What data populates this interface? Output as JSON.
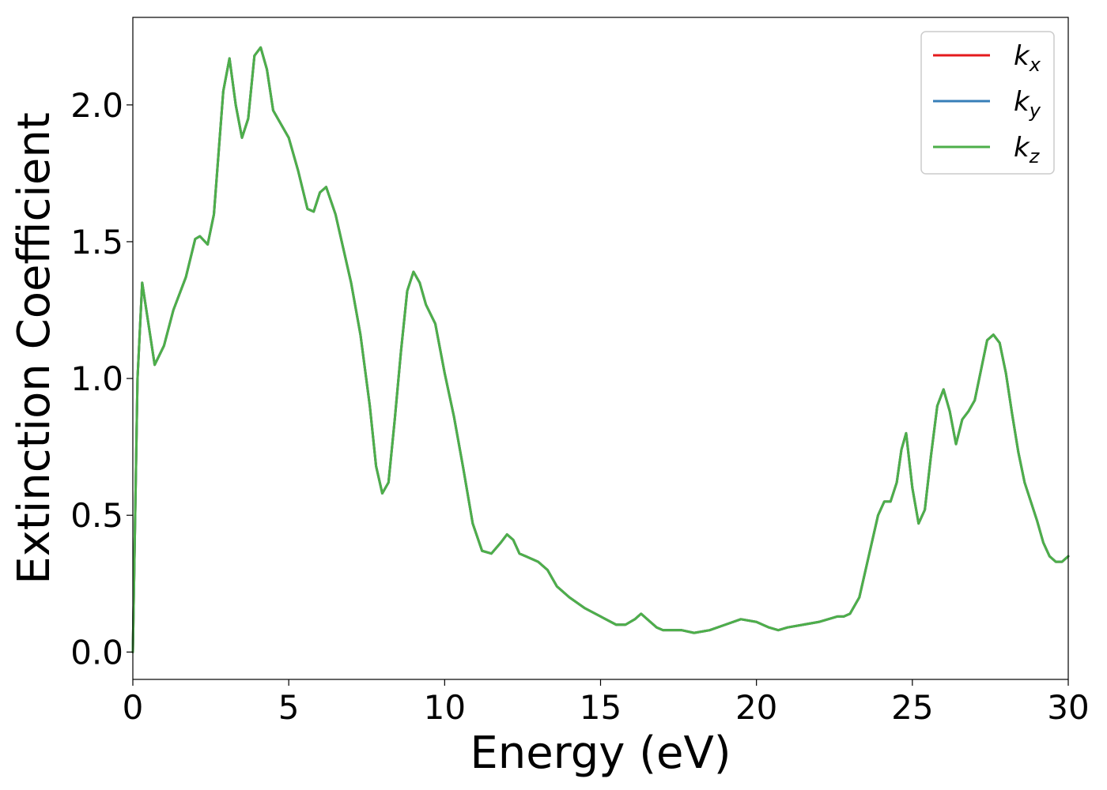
{
  "chart_data": {
    "type": "line",
    "title": "",
    "xlabel": "Energy (eV)",
    "ylabel": "Extinction Coefficient",
    "xlim": [
      0,
      30
    ],
    "ylim": [
      -0.1,
      2.32
    ],
    "xticks": [
      0,
      5,
      10,
      15,
      20,
      25,
      30
    ],
    "xtick_labels": [
      "0",
      "5",
      "10",
      "15",
      "20",
      "25",
      "30"
    ],
    "yticks": [
      0.0,
      0.5,
      1.0,
      1.5,
      2.0
    ],
    "ytick_labels": [
      "0.0",
      "0.5",
      "1.0",
      "1.5",
      "2.0"
    ],
    "grid": false,
    "legend_position": "top-right",
    "x": [
      0.0,
      0.15,
      0.3,
      0.5,
      0.7,
      1.0,
      1.3,
      1.7,
      2.0,
      2.15,
      2.4,
      2.6,
      2.9,
      3.1,
      3.3,
      3.5,
      3.7,
      3.9,
      4.1,
      4.3,
      4.5,
      4.7,
      5.0,
      5.3,
      5.6,
      5.8,
      6.0,
      6.2,
      6.5,
      6.8,
      7.0,
      7.3,
      7.6,
      7.8,
      8.0,
      8.2,
      8.4,
      8.6,
      8.8,
      9.0,
      9.2,
      9.4,
      9.7,
      10.0,
      10.3,
      10.6,
      10.9,
      11.2,
      11.5,
      11.8,
      12.0,
      12.2,
      12.4,
      12.6,
      12.8,
      13.0,
      13.3,
      13.6,
      14.0,
      14.5,
      15.0,
      15.5,
      15.8,
      16.1,
      16.3,
      16.5,
      16.8,
      17.0,
      17.3,
      17.6,
      18.0,
      18.5,
      19.0,
      19.5,
      20.0,
      20.4,
      20.7,
      21.0,
      21.5,
      22.0,
      22.3,
      22.6,
      22.8,
      23.0,
      23.3,
      23.6,
      23.9,
      24.1,
      24.3,
      24.5,
      24.65,
      24.8,
      25.0,
      25.2,
      25.4,
      25.6,
      25.8,
      26.0,
      26.2,
      26.4,
      26.6,
      26.8,
      27.0,
      27.2,
      27.4,
      27.6,
      27.8,
      28.0,
      28.2,
      28.4,
      28.6,
      28.8,
      29.0,
      29.2,
      29.4,
      29.6,
      29.8,
      30.0
    ],
    "series": [
      {
        "name": "k_x",
        "color": "#e41a1c",
        "values": [
          0.0,
          1.0,
          1.35,
          1.2,
          1.05,
          1.12,
          1.25,
          1.37,
          1.51,
          1.52,
          1.49,
          1.6,
          2.05,
          2.17,
          2.0,
          1.88,
          1.95,
          2.18,
          2.21,
          2.13,
          1.98,
          1.94,
          1.88,
          1.76,
          1.62,
          1.61,
          1.68,
          1.7,
          1.6,
          1.45,
          1.35,
          1.16,
          0.9,
          0.68,
          0.58,
          0.62,
          0.85,
          1.1,
          1.32,
          1.39,
          1.35,
          1.27,
          1.2,
          1.02,
          0.86,
          0.67,
          0.47,
          0.37,
          0.36,
          0.4,
          0.43,
          0.41,
          0.36,
          0.35,
          0.34,
          0.33,
          0.3,
          0.24,
          0.2,
          0.16,
          0.13,
          0.1,
          0.1,
          0.12,
          0.14,
          0.12,
          0.09,
          0.08,
          0.08,
          0.08,
          0.07,
          0.08,
          0.1,
          0.12,
          0.11,
          0.09,
          0.08,
          0.09,
          0.1,
          0.11,
          0.12,
          0.13,
          0.13,
          0.14,
          0.2,
          0.35,
          0.5,
          0.55,
          0.55,
          0.62,
          0.74,
          0.8,
          0.6,
          0.47,
          0.52,
          0.72,
          0.9,
          0.96,
          0.88,
          0.76,
          0.85,
          0.88,
          0.92,
          1.03,
          1.14,
          1.16,
          1.13,
          1.02,
          0.87,
          0.73,
          0.62,
          0.55,
          0.48,
          0.4,
          0.35,
          0.33,
          0.33,
          0.35
        ]
      },
      {
        "name": "k_y",
        "color": "#377eb8",
        "values": [
          0.0,
          1.0,
          1.35,
          1.2,
          1.05,
          1.12,
          1.25,
          1.37,
          1.51,
          1.52,
          1.49,
          1.6,
          2.05,
          2.17,
          2.0,
          1.88,
          1.95,
          2.18,
          2.21,
          2.13,
          1.98,
          1.94,
          1.88,
          1.76,
          1.62,
          1.61,
          1.68,
          1.7,
          1.6,
          1.45,
          1.35,
          1.16,
          0.9,
          0.68,
          0.58,
          0.62,
          0.85,
          1.1,
          1.32,
          1.39,
          1.35,
          1.27,
          1.2,
          1.02,
          0.86,
          0.67,
          0.47,
          0.37,
          0.36,
          0.4,
          0.43,
          0.41,
          0.36,
          0.35,
          0.34,
          0.33,
          0.3,
          0.24,
          0.2,
          0.16,
          0.13,
          0.1,
          0.1,
          0.12,
          0.14,
          0.12,
          0.09,
          0.08,
          0.08,
          0.08,
          0.07,
          0.08,
          0.1,
          0.12,
          0.11,
          0.09,
          0.08,
          0.09,
          0.1,
          0.11,
          0.12,
          0.13,
          0.13,
          0.14,
          0.2,
          0.35,
          0.5,
          0.55,
          0.55,
          0.62,
          0.74,
          0.8,
          0.6,
          0.47,
          0.52,
          0.72,
          0.9,
          0.96,
          0.88,
          0.76,
          0.85,
          0.88,
          0.92,
          1.03,
          1.14,
          1.16,
          1.13,
          1.02,
          0.87,
          0.73,
          0.62,
          0.55,
          0.48,
          0.4,
          0.35,
          0.33,
          0.33,
          0.35
        ]
      },
      {
        "name": "k_z",
        "color": "#4daf4a",
        "values": [
          0.0,
          1.0,
          1.35,
          1.2,
          1.05,
          1.12,
          1.25,
          1.37,
          1.51,
          1.52,
          1.49,
          1.6,
          2.05,
          2.17,
          2.0,
          1.88,
          1.95,
          2.18,
          2.21,
          2.13,
          1.98,
          1.94,
          1.88,
          1.76,
          1.62,
          1.61,
          1.68,
          1.7,
          1.6,
          1.45,
          1.35,
          1.16,
          0.9,
          0.68,
          0.58,
          0.62,
          0.85,
          1.1,
          1.32,
          1.39,
          1.35,
          1.27,
          1.2,
          1.02,
          0.86,
          0.67,
          0.47,
          0.37,
          0.36,
          0.4,
          0.43,
          0.41,
          0.36,
          0.35,
          0.34,
          0.33,
          0.3,
          0.24,
          0.2,
          0.16,
          0.13,
          0.1,
          0.1,
          0.12,
          0.14,
          0.12,
          0.09,
          0.08,
          0.08,
          0.08,
          0.07,
          0.08,
          0.1,
          0.12,
          0.11,
          0.09,
          0.08,
          0.09,
          0.1,
          0.11,
          0.12,
          0.13,
          0.13,
          0.14,
          0.2,
          0.35,
          0.5,
          0.55,
          0.55,
          0.62,
          0.74,
          0.8,
          0.6,
          0.47,
          0.52,
          0.72,
          0.9,
          0.96,
          0.88,
          0.76,
          0.85,
          0.88,
          0.92,
          1.03,
          1.14,
          1.16,
          1.13,
          1.02,
          0.87,
          0.73,
          0.62,
          0.55,
          0.48,
          0.4,
          0.35,
          0.33,
          0.33,
          0.35
        ]
      }
    ],
    "legend": [
      {
        "base": "k",
        "sub": "x",
        "color": "#e41a1c"
      },
      {
        "base": "k",
        "sub": "y",
        "color": "#377eb8"
      },
      {
        "base": "k",
        "sub": "z",
        "color": "#4daf4a"
      }
    ]
  }
}
